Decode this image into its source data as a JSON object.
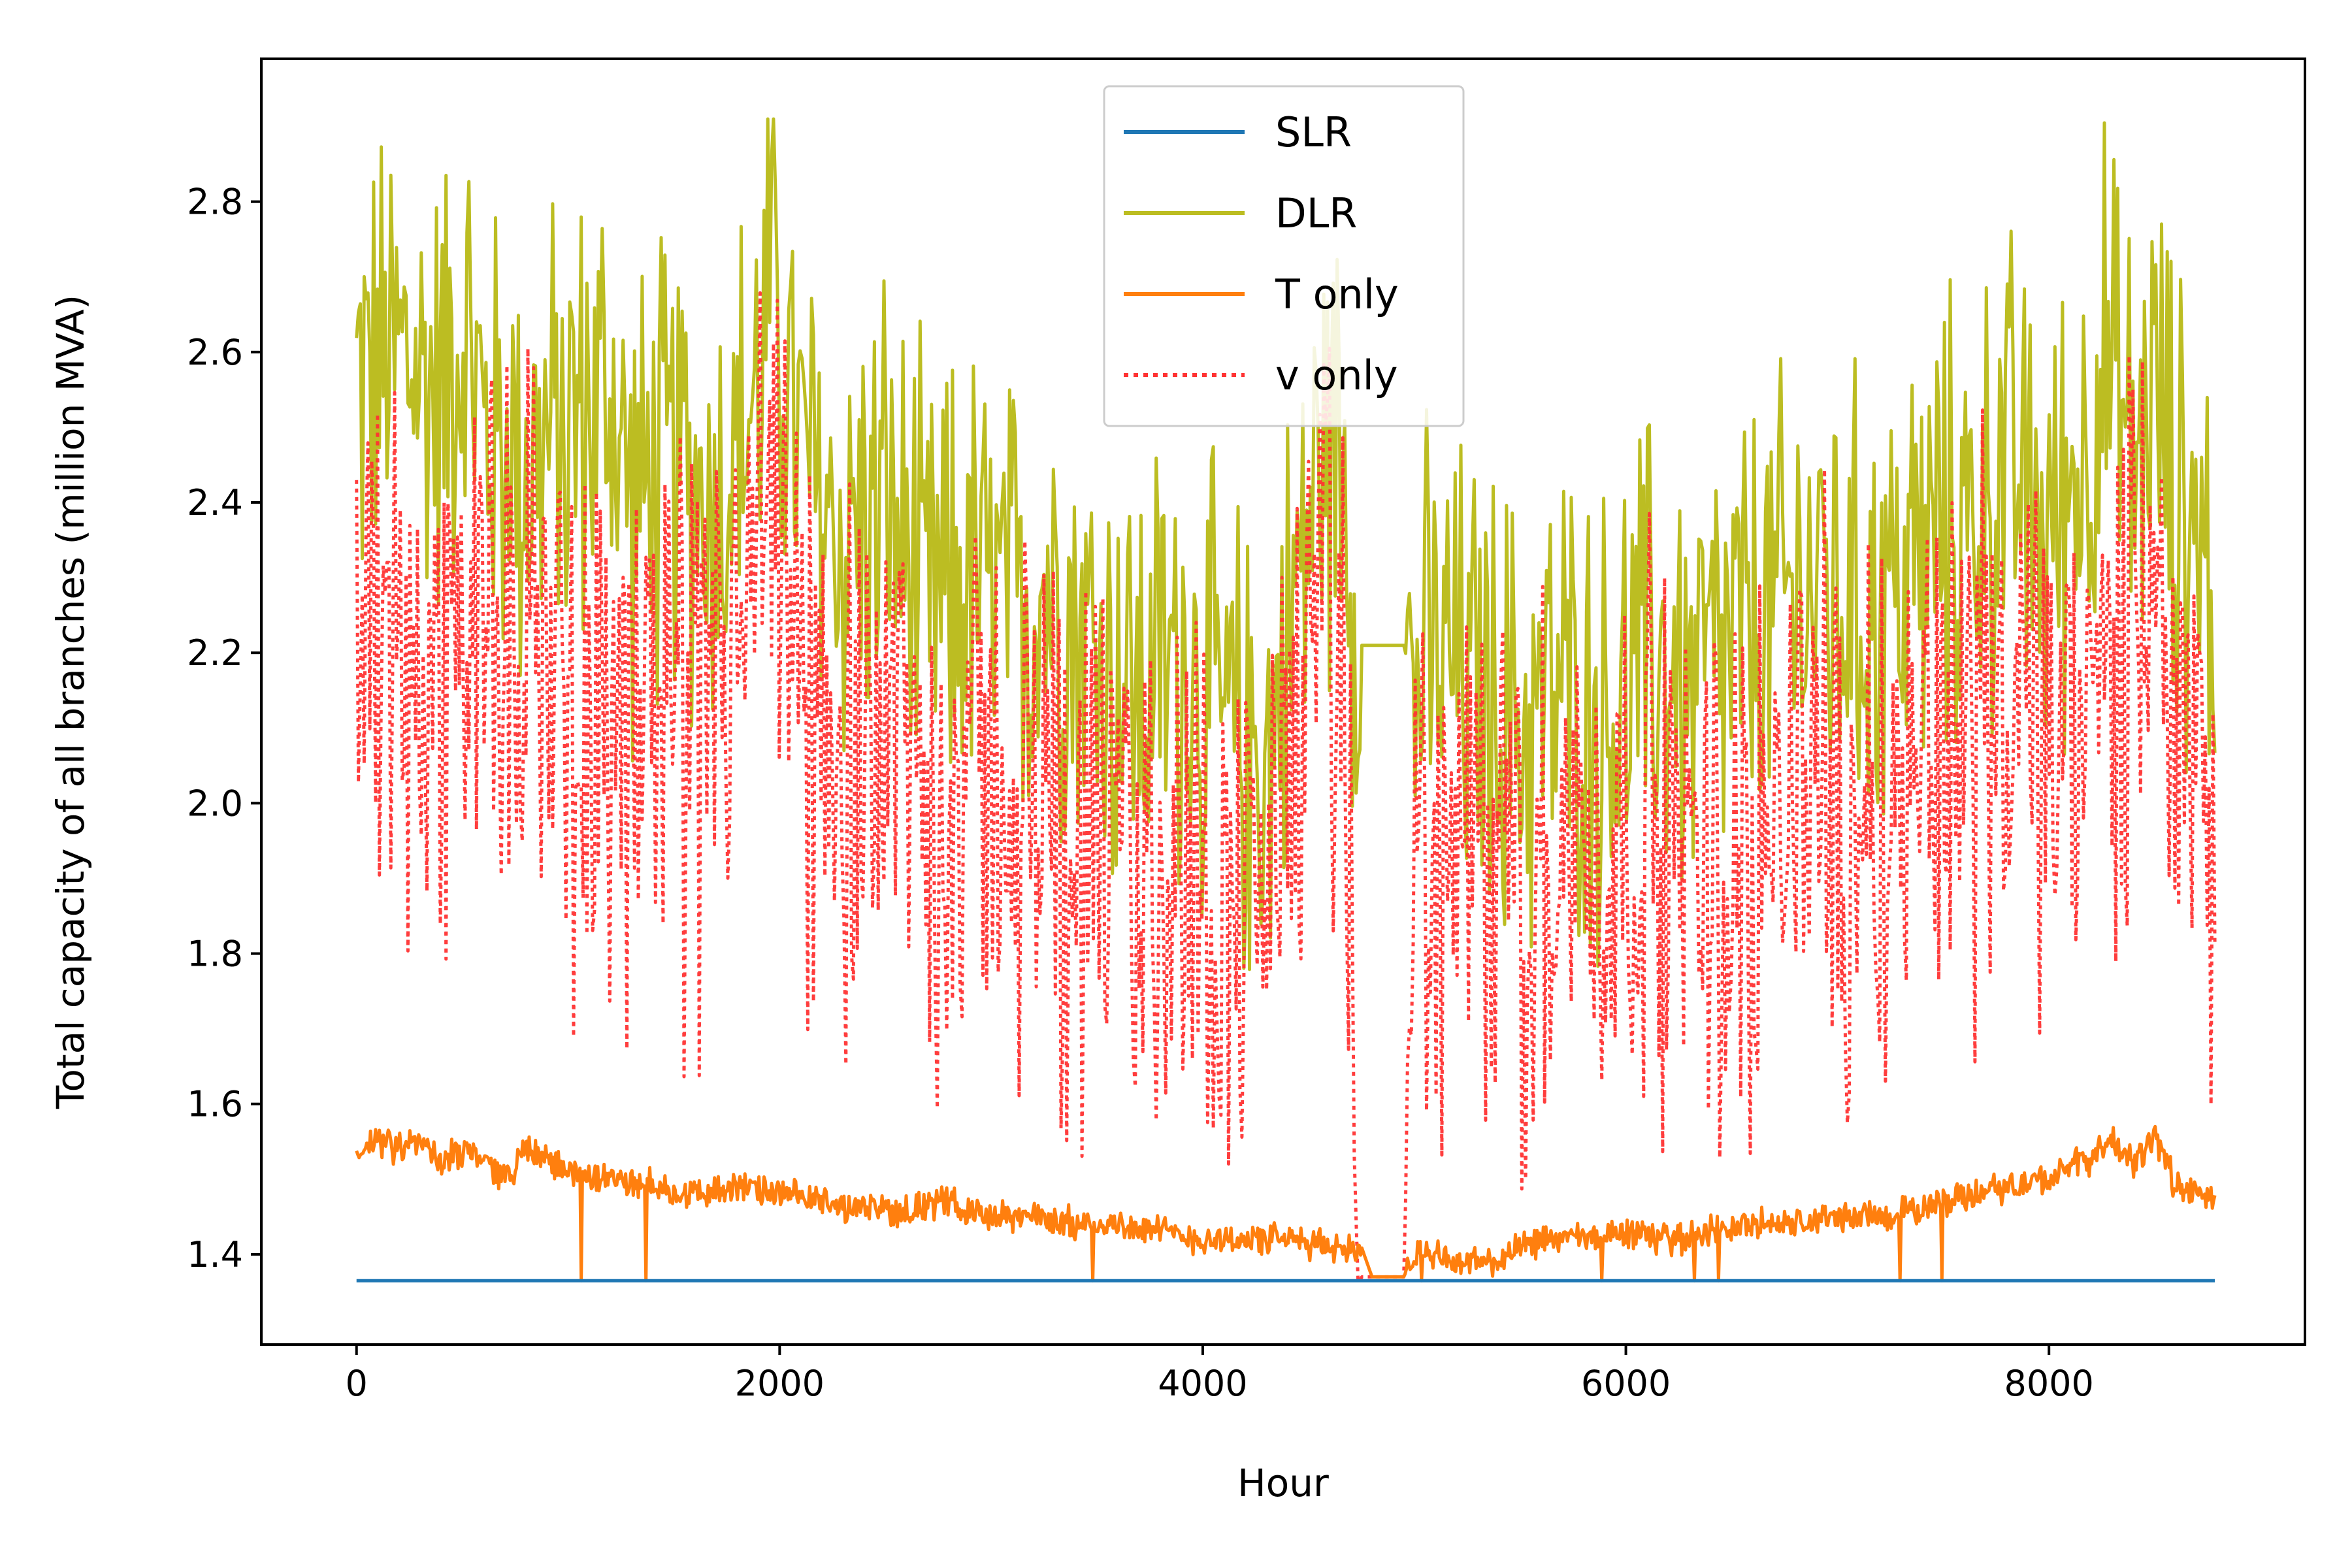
{
  "chart_data": {
    "type": "line",
    "xlabel": "Hour",
    "ylabel": "Total capacity of all branches (million MVA)",
    "xlim": [
      -450,
      9210
    ],
    "ylim": [
      1.28,
      2.99
    ],
    "xticks": [
      0,
      2000,
      4000,
      6000,
      8000
    ],
    "xtick_labels": [
      "0",
      "2000",
      "4000",
      "6000",
      "8000"
    ],
    "yticks": [
      1.4,
      1.6,
      1.8,
      2.0,
      2.2,
      2.4,
      2.6,
      2.8
    ],
    "ytick_labels": [
      "1.4",
      "1.6",
      "1.8",
      "2.0",
      "2.2",
      "2.4",
      "2.6",
      "2.8"
    ],
    "grid": false,
    "legend_position": "top-center",
    "series": [
      {
        "name": "SLR",
        "color": "#1f77b4",
        "style": "solid",
        "x": [
          0,
          8784
        ],
        "y": [
          1.365,
          1.365
        ]
      },
      {
        "name": "DLR",
        "color": "#bcbd22",
        "style": "solid",
        "x": [
          0,
          200,
          400,
          500,
          600,
          800,
          1000,
          1200,
          1300,
          1500,
          1700,
          1900,
          1950,
          2100,
          2300,
          2500,
          2700,
          2900,
          3100,
          3300,
          3500,
          3700,
          3900,
          4100,
          4300,
          4450,
          4550,
          4650,
          4750,
          4800,
          4950,
          5000,
          5100,
          5300,
          5500,
          5700,
          5900,
          6100,
          6300,
          6500,
          6700,
          6900,
          7100,
          7300,
          7500,
          7700,
          7800,
          8000,
          8200,
          8250,
          8400,
          8500,
          8600,
          8700,
          8784
        ],
        "y": [
          2.55,
          2.6,
          2.55,
          2.65,
          2.5,
          2.45,
          2.5,
          2.55,
          2.4,
          2.45,
          2.4,
          2.55,
          2.7,
          2.45,
          2.35,
          2.4,
          2.25,
          2.3,
          2.25,
          2.3,
          2.2,
          2.15,
          2.2,
          2.1,
          2.05,
          2.3,
          2.45,
          2.5,
          2.21,
          2.21,
          2.21,
          2.15,
          2.2,
          2.15,
          2.1,
          2.15,
          2.1,
          2.2,
          2.15,
          2.2,
          2.25,
          2.3,
          2.25,
          2.3,
          2.35,
          2.4,
          2.45,
          2.35,
          2.5,
          2.6,
          2.45,
          2.55,
          2.4,
          2.35,
          2.3
        ]
      },
      {
        "name": "T only",
        "color": "#ff7f0e",
        "style": "solid",
        "x": [
          0,
          100,
          200,
          300,
          400,
          500,
          600,
          700,
          800,
          1000,
          1200,
          1400,
          1600,
          1800,
          2000,
          2200,
          2400,
          2600,
          2800,
          3000,
          3200,
          3400,
          3600,
          3800,
          4000,
          4200,
          4400,
          4600,
          4750,
          4800,
          4950,
          5000,
          5200,
          5400,
          5600,
          5800,
          6000,
          6200,
          6400,
          6600,
          6800,
          7000,
          7200,
          7400,
          7600,
          7800,
          8000,
          8200,
          8300,
          8400,
          8500,
          8600,
          8700,
          8784
        ],
        "y": [
          1.53,
          1.55,
          1.54,
          1.55,
          1.52,
          1.54,
          1.53,
          1.5,
          1.54,
          1.51,
          1.5,
          1.49,
          1.48,
          1.49,
          1.48,
          1.47,
          1.46,
          1.46,
          1.47,
          1.45,
          1.45,
          1.44,
          1.44,
          1.43,
          1.42,
          1.42,
          1.42,
          1.41,
          1.41,
          1.37,
          1.37,
          1.4,
          1.39,
          1.39,
          1.42,
          1.42,
          1.43,
          1.42,
          1.43,
          1.44,
          1.44,
          1.45,
          1.45,
          1.46,
          1.48,
          1.49,
          1.5,
          1.53,
          1.55,
          1.52,
          1.56,
          1.49,
          1.48,
          1.47
        ]
      },
      {
        "name": "v only",
        "color": "#ff3333",
        "style": "dotted",
        "x": [
          0,
          200,
          400,
          500,
          600,
          800,
          1000,
          1200,
          1400,
          1600,
          1800,
          1950,
          2100,
          2300,
          2500,
          2700,
          2900,
          3100,
          3300,
          3500,
          3700,
          3900,
          4100,
          4300,
          4450,
          4550,
          4650,
          4750,
          4800,
          4950,
          5000,
          5100,
          5300,
          5500,
          5700,
          5900,
          6100,
          6300,
          6500,
          6700,
          6900,
          7100,
          7300,
          7500,
          7700,
          7900,
          8100,
          8300,
          8450,
          8600,
          8784
        ],
        "y": [
          2.2,
          2.25,
          2.15,
          2.3,
          2.2,
          2.25,
          2.2,
          2.1,
          2.15,
          2.1,
          2.2,
          2.35,
          2.15,
          2.1,
          2.15,
          2.0,
          2.05,
          2.0,
          2.05,
          1.95,
          1.9,
          1.95,
          1.85,
          1.9,
          2.1,
          2.3,
          2.2,
          1.37,
          1.37,
          1.37,
          1.95,
          1.9,
          1.95,
          1.9,
          1.95,
          1.9,
          2.0,
          1.9,
          1.95,
          2.0,
          2.05,
          2.0,
          2.05,
          2.1,
          2.15,
          2.1,
          2.05,
          2.15,
          2.3,
          2.1,
          2.0
        ]
      }
    ]
  }
}
